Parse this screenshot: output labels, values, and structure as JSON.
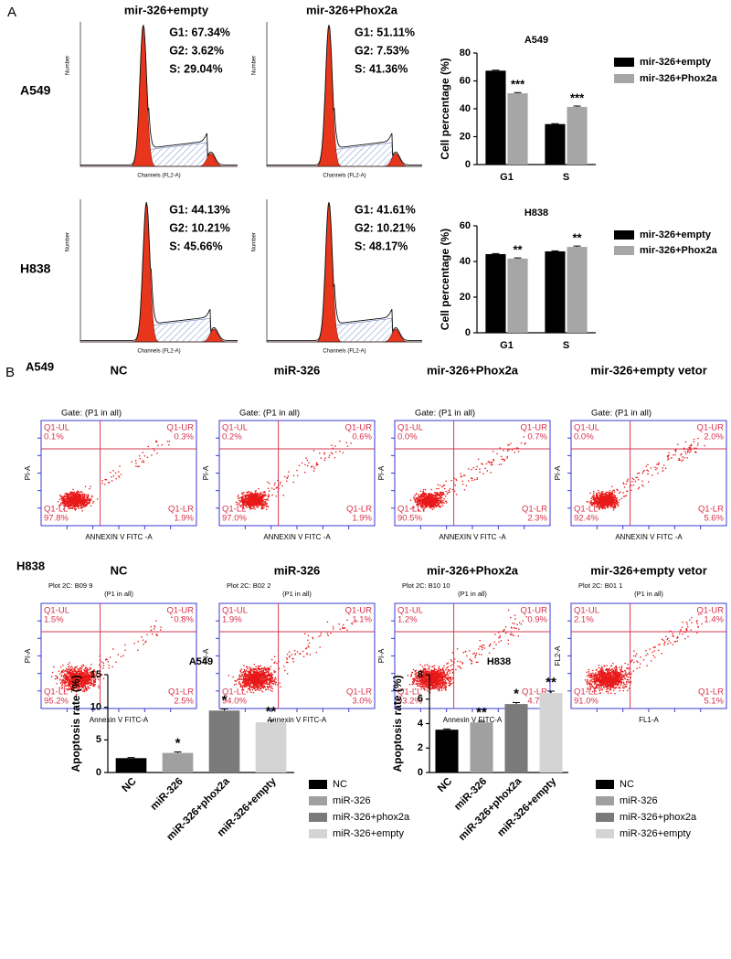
{
  "panel_a": {
    "label": "A",
    "rows": [
      "A549",
      "H838"
    ],
    "histogram_xlabel": "Channels (FL2-A)",
    "histogram_ylabel": "Number",
    "histograms": [
      {
        "title": "mir-326+empty",
        "stats": [
          "G1: 67.34%",
          "G2: 3.62%",
          "S: 29.04%"
        ]
      },
      {
        "title": "mir-326+Phox2a",
        "stats": [
          "G1: 51.11%",
          "G2: 7.53%",
          "S: 41.36%"
        ]
      },
      {
        "stats": [
          "G1: 44.13%",
          "G2: 10.21%",
          "S: 45.66%"
        ]
      },
      {
        "stats": [
          "G1: 41.61%",
          "G2: 10.21%",
          "S: 48.17%"
        ]
      }
    ]
  },
  "panel_b": {
    "label": "B",
    "rows": [
      "A549",
      "H838"
    ],
    "dotplots": [
      {
        "title": "NC",
        "gate": [
          "Gate: (P1 in all)"
        ],
        "xlabel": "ANNEXIN V FITC -A",
        "ylabel": "PI-A",
        "quadrants": [
          [
            "Q1-UL",
            "0.1%"
          ],
          [
            "Q1-UR",
            "0.3%"
          ],
          [
            "Q1-LL",
            "97.8%"
          ],
          [
            "Q1-LR",
            "1.9%"
          ]
        ]
      },
      {
        "title": "miR-326",
        "gate": [
          "Gate: (P1 in all)"
        ],
        "xlabel": "ANNEXIN V FITC -A",
        "ylabel": "PI-A",
        "quadrants": [
          [
            "Q1-UL",
            "0.2%"
          ],
          [
            "Q1-UR",
            "0.6%"
          ],
          [
            "Q1-LL",
            "97.0%"
          ],
          [
            "Q1-LR",
            "1.9%"
          ]
        ]
      },
      {
        "title": "mir-326+Phox2a",
        "gate": [
          "Gate: (P1 in all)"
        ],
        "xlabel": "ANNEXIN V FITC -A",
        "ylabel": "PI-A",
        "quadrants": [
          [
            "Q1-UL",
            "0.0%"
          ],
          [
            "Q1-UR",
            "0.7%"
          ],
          [
            "Q1-LL",
            "90.5%"
          ],
          [
            "Q1-LR",
            "2.3%"
          ]
        ]
      },
      {
        "title": "mir-326+empty vetor",
        "gate": [
          "Gate: (P1 in all)"
        ],
        "xlabel": "ANNEXIN V FITC -A",
        "ylabel": "PI-A",
        "quadrants": [
          [
            "Q1-UL",
            "0.0%"
          ],
          [
            "Q1-UR",
            "2.0%"
          ],
          [
            "Q1-LL",
            "92.4%"
          ],
          [
            "Q1-LR",
            "5.6%"
          ]
        ]
      },
      {
        "title": "NC",
        "gate": [
          "Plot 2C: B09 9",
          "(P1 in all)"
        ],
        "xlabel": "Annexin V FITC-A",
        "ylabel": "PI-A",
        "quadrants": [
          [
            "Q1-UL",
            "1.5%"
          ],
          [
            "Q1-UR",
            "0.8%"
          ],
          [
            "Q1-LL",
            "95.2%"
          ],
          [
            "Q1-LR",
            "2.5%"
          ]
        ]
      },
      {
        "title": "miR-326",
        "gate": [
          "Plot 2C: B02 2",
          "(P1 in all)"
        ],
        "xlabel": "Annexin V FITC-A",
        "ylabel": "PI-A",
        "quadrants": [
          [
            "Q1-UL",
            "1.9%"
          ],
          [
            "Q1-UR",
            "1.1%"
          ],
          [
            "Q1-LL",
            "94.0%"
          ],
          [
            "Q1-LR",
            "3.0%"
          ]
        ]
      },
      {
        "title": "mir-326+Phox2a",
        "gate": [
          "Plot 2C: B10 10",
          "(P1 in all)"
        ],
        "xlabel": "Annexin V FITC-A",
        "ylabel": "PI-A",
        "quadrants": [
          [
            "Q1-UL",
            "1.2%"
          ],
          [
            "Q1-UR",
            "0.9%"
          ],
          [
            "Q1-LL",
            "93.2%"
          ],
          [
            "Q1-LR",
            "4.7%"
          ]
        ]
      },
      {
        "title": "mir-326+empty vetor",
        "gate": [
          "Plot 2C: B01 1",
          "(P1 in all)"
        ],
        "xlabel": "FL1-A",
        "ylabel": "FL2-A",
        "quadrants": [
          [
            "Q1-UL",
            "2.1%"
          ],
          [
            "Q1-UR",
            "1.4%"
          ],
          [
            "Q1-LL",
            "91.0%"
          ],
          [
            "Q1-LR",
            "5.1%"
          ]
        ]
      }
    ]
  },
  "chart_data": [
    {
      "type": "bar",
      "title": "A549",
      "ylabel": "Cell percentage (%)",
      "categories": [
        "G1",
        "S"
      ],
      "series": [
        {
          "name": "mir-326+empty",
          "color": "#000000",
          "values": [
            67.34,
            29.04
          ],
          "errors": [
            0.4,
            0.3
          ]
        },
        {
          "name": "mir-326+Phox2a",
          "color": "#a6a6a6",
          "values": [
            51.11,
            41.36
          ],
          "errors": [
            0.5,
            0.6
          ],
          "annotations": [
            "***",
            "***"
          ]
        }
      ],
      "ylim": [
        0,
        80
      ],
      "yticks": [
        0,
        20,
        40,
        60,
        80
      ],
      "legend": "right"
    },
    {
      "type": "bar",
      "title": "H838",
      "ylabel": "Cell percentage (%)",
      "categories": [
        "G1",
        "S"
      ],
      "series": [
        {
          "name": "mir-326+empty",
          "color": "#000000",
          "values": [
            44.13,
            45.66
          ],
          "errors": [
            0.3,
            0.3
          ]
        },
        {
          "name": "mir-326+Phox2a",
          "color": "#a6a6a6",
          "values": [
            41.61,
            48.17
          ],
          "errors": [
            0.4,
            0.5
          ],
          "annotations": [
            "**",
            "**"
          ]
        }
      ],
      "ylim": [
        0,
        60
      ],
      "yticks": [
        0,
        20,
        40,
        60
      ],
      "legend": "right"
    },
    {
      "type": "bar",
      "title": "A549",
      "ylabel": "Apoptosis rate (%)",
      "categories": [
        "NC",
        "miR-326",
        "miR-326+phox2a",
        "miR-326+empty"
      ],
      "values": [
        2.2,
        3.0,
        9.5,
        7.7
      ],
      "errors": [
        0.1,
        0.15,
        0.25,
        0.3
      ],
      "colors": [
        "#000000",
        "#a0a0a0",
        "#7a7a7a",
        "#d4d4d4"
      ],
      "annotations": [
        null,
        "*",
        "*",
        "**"
      ],
      "ylim": [
        0,
        15
      ],
      "yticks": [
        0,
        5,
        10,
        15
      ],
      "legend": "right"
    },
    {
      "type": "bar",
      "title": "H838",
      "ylabel": "Apoptosis rate (%)",
      "categories": [
        "NC",
        "miR-326",
        "miR-326+phox2a",
        "miR-326+empty"
      ],
      "values": [
        3.5,
        4.1,
        5.6,
        6.5
      ],
      "errors": [
        0.06,
        0.08,
        0.12,
        0.15
      ],
      "colors": [
        "#000000",
        "#a0a0a0",
        "#7a7a7a",
        "#d4d4d4"
      ],
      "annotations": [
        null,
        "**",
        "*",
        "**"
      ],
      "ylim": [
        0,
        8
      ],
      "yticks": [
        0,
        2,
        4,
        6,
        8
      ],
      "legend": "right"
    }
  ]
}
